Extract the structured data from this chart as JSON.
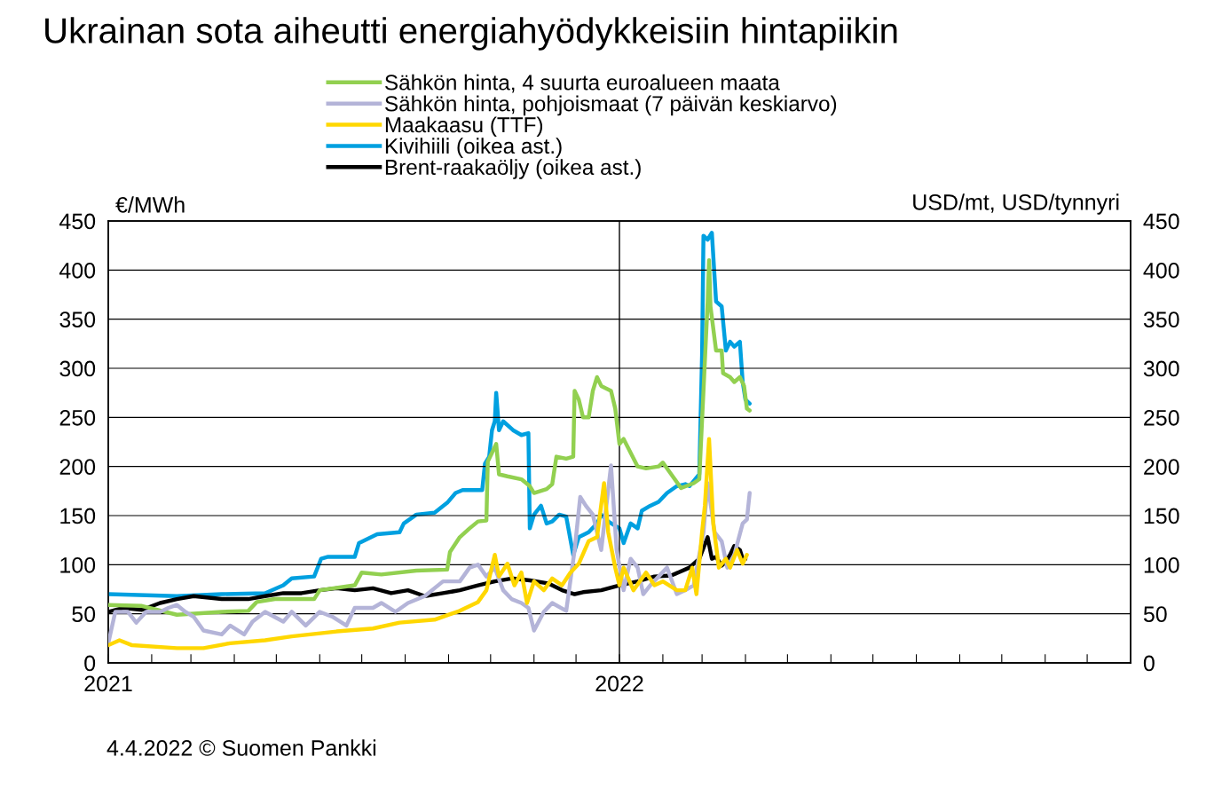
{
  "chart_data": {
    "type": "line",
    "title": "Ukrainan sota aiheutti energiahyödykkeisiin hintapiikin",
    "ylabel": "€/MWh",
    "y2label": "USD/mt, USD/tynnyri",
    "annotations": [
      "4.4.2022 © Suomen Pankki"
    ],
    "xlim": [
      "2021-01-01",
      "2023-01-01"
    ],
    "xticks": [
      {
        "value": "2021-01-01",
        "label": "2021"
      },
      {
        "value": "2021-02-01",
        "label": null
      },
      {
        "value": "2021-03-01",
        "label": null
      },
      {
        "value": "2021-04-01",
        "label": null
      },
      {
        "value": "2021-05-01",
        "label": null
      },
      {
        "value": "2021-06-01",
        "label": null
      },
      {
        "value": "2021-07-01",
        "label": null
      },
      {
        "value": "2021-08-01",
        "label": null
      },
      {
        "value": "2021-09-01",
        "label": null
      },
      {
        "value": "2021-10-01",
        "label": null
      },
      {
        "value": "2021-11-01",
        "label": null
      },
      {
        "value": "2021-12-01",
        "label": null
      },
      {
        "value": "2022-01-01",
        "label": "2022"
      },
      {
        "value": "2022-02-01",
        "label": null
      },
      {
        "value": "2022-03-01",
        "label": null
      },
      {
        "value": "2022-04-01",
        "label": null
      },
      {
        "value": "2022-05-01",
        "label": null
      },
      {
        "value": "2022-06-01",
        "label": null
      },
      {
        "value": "2022-07-01",
        "label": null
      },
      {
        "value": "2022-08-01",
        "label": null
      },
      {
        "value": "2022-09-01",
        "label": null
      },
      {
        "value": "2022-10-01",
        "label": null
      },
      {
        "value": "2022-11-01",
        "label": null
      },
      {
        "value": "2022-12-01",
        "label": null
      }
    ],
    "ylim": [
      0,
      450
    ],
    "yticks": [
      0,
      50,
      100,
      150,
      200,
      250,
      300,
      350,
      400,
      450
    ],
    "y2lim": [
      0,
      450
    ],
    "y2ticks": [
      0,
      50,
      100,
      150,
      200,
      250,
      300,
      350,
      400,
      450
    ],
    "grid": "y",
    "legend": "top",
    "marker": "none",
    "line_style": "solid",
    "ref_lines": [
      {
        "axis": "x",
        "value": "2022-01-01",
        "color": "#000000"
      }
    ],
    "series": [
      {
        "name": "Sähkön hinta, 4 suurta euroalueen maata",
        "color": "#92d050",
        "x": [
          "2021-01-01",
          "2021-01-25",
          "2021-02-19",
          "2021-03-23",
          "2021-04-11",
          "2021-04-17",
          "2021-04-30",
          "2021-05-28",
          "2021-06-01",
          "2021-06-26",
          "2021-07-01",
          "2021-07-15",
          "2021-08-09",
          "2021-08-31",
          "2021-09-02",
          "2021-09-09",
          "2021-09-16",
          "2021-09-22",
          "2021-09-28",
          "2021-09-29",
          "2021-10-02",
          "2021-10-05",
          "2021-10-07",
          "2021-10-13",
          "2021-10-23",
          "2021-10-29",
          "2021-11-01",
          "2021-11-10",
          "2021-11-14",
          "2021-11-17",
          "2021-11-24",
          "2021-11-29",
          "2021-11-30",
          "2021-12-03",
          "2021-12-06",
          "2021-12-10",
          "2021-12-13",
          "2021-12-16",
          "2021-12-19",
          "2021-12-26",
          "2021-12-29",
          "2022-01-01",
          "2022-01-04",
          "2022-01-09",
          "2022-01-14",
          "2022-01-20",
          "2022-01-29",
          "2022-02-01",
          "2022-02-07",
          "2022-02-14",
          "2022-02-23",
          "2022-02-27",
          "2022-03-02",
          "2022-03-05",
          "2022-03-06",
          "2022-03-07",
          "2022-03-11",
          "2022-03-15",
          "2022-03-16",
          "2022-03-21",
          "2022-03-24",
          "2022-03-28",
          "2022-03-31",
          "2022-04-02",
          "2022-04-04"
        ],
        "values": [
          59,
          58,
          49,
          52,
          53,
          62,
          65,
          65,
          74,
          79,
          92,
          90,
          94,
          95,
          113,
          128,
          137,
          144,
          145,
          205,
          214,
          223,
          192,
          190,
          187,
          180,
          173,
          177,
          182,
          210,
          208,
          210,
          277,
          268,
          250,
          250,
          277,
          291,
          282,
          277,
          259,
          223,
          228,
          214,
          200,
          198,
          200,
          204,
          192,
          178,
          183,
          187,
          277,
          368,
          410,
          363,
          318,
          318,
          295,
          291,
          286,
          291,
          282,
          259,
          257
        ]
      },
      {
        "name": "Sähkön hinta, pohjoismaat (7 päivän keskiarvo)",
        "color": "#b4b4d8",
        "x": [
          "2021-01-01",
          "2021-01-06",
          "2021-01-15",
          "2021-01-21",
          "2021-01-28",
          "2021-02-07",
          "2021-02-13",
          "2021-02-19",
          "2021-02-25",
          "2021-03-03",
          "2021-03-10",
          "2021-03-23",
          "2021-03-29",
          "2021-04-08",
          "2021-04-14",
          "2021-04-23",
          "2021-05-06",
          "2021-05-12",
          "2021-05-22",
          "2021-06-01",
          "2021-06-10",
          "2021-06-20",
          "2021-06-26",
          "2021-07-09",
          "2021-07-15",
          "2021-07-25",
          "2021-08-03",
          "2021-08-15",
          "2021-08-28",
          "2021-09-09",
          "2021-09-16",
          "2021-09-22",
          "2021-09-28",
          "2021-10-04",
          "2021-10-10",
          "2021-10-16",
          "2021-10-23",
          "2021-10-28",
          "2021-11-01",
          "2021-11-08",
          "2021-11-14",
          "2021-11-24",
          "2021-11-30",
          "2021-12-04",
          "2021-12-08",
          "2021-12-13",
          "2021-12-19",
          "2021-12-26",
          "2021-12-30",
          "2022-01-04",
          "2022-01-09",
          "2022-01-14",
          "2022-01-18",
          "2022-01-23",
          "2022-01-29",
          "2022-02-04",
          "2022-02-11",
          "2022-02-17",
          "2022-02-23",
          "2022-03-02",
          "2022-03-05",
          "2022-03-10",
          "2022-03-15",
          "2022-03-19",
          "2022-03-24",
          "2022-03-30",
          "2022-04-02",
          "2022-04-04"
        ],
        "values": [
          20,
          52,
          52,
          41,
          52,
          52,
          56,
          59,
          52,
          47,
          33,
          29,
          38,
          29,
          42,
          52,
          42,
          52,
          38,
          52,
          47,
          38,
          56,
          56,
          61,
          52,
          61,
          68,
          83,
          83,
          97,
          100,
          88,
          97,
          74,
          65,
          61,
          56,
          33,
          52,
          61,
          53,
          115,
          169,
          160,
          151,
          115,
          201,
          115,
          74,
          106,
          97,
          70,
          79,
          88,
          97,
          70,
          74,
          79,
          133,
          183,
          133,
          124,
          97,
          110,
          142,
          146,
          173
        ]
      },
      {
        "name": "Maakaasu (TTF)",
        "color": "#ffd700",
        "x": [
          "2021-01-01",
          "2021-01-09",
          "2021-01-18",
          "2021-02-19",
          "2021-03-10",
          "2021-03-29",
          "2021-04-23",
          "2021-05-12",
          "2021-06-13",
          "2021-07-09",
          "2021-07-28",
          "2021-08-22",
          "2021-09-09",
          "2021-09-22",
          "2021-09-28",
          "2021-10-04",
          "2021-10-07",
          "2021-10-13",
          "2021-10-18",
          "2021-10-23",
          "2021-10-27",
          "2021-11-01",
          "2021-11-08",
          "2021-11-14",
          "2021-11-21",
          "2021-11-27",
          "2021-12-03",
          "2021-12-10",
          "2021-12-16",
          "2021-12-21",
          "2021-12-24",
          "2021-12-29",
          "2022-01-01",
          "2022-01-04",
          "2022-01-11",
          "2022-01-20",
          "2022-01-26",
          "2022-02-01",
          "2022-02-11",
          "2022-02-17",
          "2022-02-22",
          "2022-02-25",
          "2022-03-01",
          "2022-03-03",
          "2022-03-06",
          "2022-03-09",
          "2022-03-13",
          "2022-03-18",
          "2022-03-21",
          "2022-03-26",
          "2022-03-30",
          "2022-04-02"
        ],
        "values": [
          18,
          23,
          18,
          15,
          15,
          20,
          23,
          27,
          32,
          35,
          41,
          44,
          53,
          62,
          74,
          110,
          88,
          101,
          79,
          92,
          61,
          83,
          74,
          86,
          79,
          92,
          101,
          124,
          128,
          183,
          133,
          97,
          79,
          97,
          74,
          92,
          79,
          83,
          74,
          74,
          97,
          70,
          133,
          160,
          228,
          142,
          97,
          106,
          97,
          115,
          101,
          110
        ]
      },
      {
        "name": "Kivihiili (oikea ast.)",
        "color": "#00a0e0",
        "axis": "y2",
        "x": [
          "2021-01-01",
          "2021-02-19",
          "2021-03-23",
          "2021-04-23",
          "2021-05-06",
          "2021-05-12",
          "2021-05-28",
          "2021-06-02",
          "2021-06-07",
          "2021-06-26",
          "2021-06-29",
          "2021-07-12",
          "2021-07-28",
          "2021-07-31",
          "2021-08-09",
          "2021-08-22",
          "2021-08-31",
          "2021-09-06",
          "2021-09-11",
          "2021-09-25",
          "2021-09-27",
          "2021-09-30",
          "2021-10-02",
          "2021-10-04",
          "2021-10-05",
          "2021-10-07",
          "2021-10-10",
          "2021-10-17",
          "2021-10-23",
          "2021-10-28",
          "2021-10-29",
          "2021-11-01",
          "2021-11-06",
          "2021-11-10",
          "2021-11-14",
          "2021-11-19",
          "2021-11-24",
          "2021-11-29",
          "2021-12-03",
          "2021-12-10",
          "2021-12-16",
          "2021-12-19",
          "2021-12-24",
          "2022-01-01",
          "2022-01-04",
          "2022-01-09",
          "2022-01-14",
          "2022-01-17",
          "2022-01-23",
          "2022-01-29",
          "2022-02-04",
          "2022-02-11",
          "2022-02-17",
          "2022-02-20",
          "2022-02-27",
          "2022-03-01",
          "2022-03-02",
          "2022-03-05",
          "2022-03-08",
          "2022-03-11",
          "2022-03-15",
          "2022-03-18",
          "2022-03-21",
          "2022-03-24",
          "2022-03-28",
          "2022-03-30",
          "2022-04-01",
          "2022-04-04"
        ],
        "values": [
          70,
          68,
          70,
          71,
          79,
          86,
          88,
          106,
          108,
          108,
          122,
          131,
          133,
          142,
          151,
          153,
          163,
          173,
          176,
          176,
          203,
          210,
          237,
          246,
          275,
          237,
          246,
          237,
          232,
          234,
          137,
          151,
          160,
          142,
          144,
          151,
          149,
          110,
          128,
          133,
          142,
          151,
          144,
          137,
          122,
          142,
          137,
          155,
          160,
          164,
          173,
          180,
          182,
          180,
          192,
          313,
          435,
          431,
          438,
          368,
          363,
          318,
          327,
          322,
          327,
          286,
          268,
          264
        ]
      },
      {
        "name": "Brent-raakaöljy (oikea ast.)",
        "color": "#000000",
        "axis": "y2",
        "x": [
          "2021-01-01",
          "2021-01-12",
          "2021-01-25",
          "2021-02-07",
          "2021-02-19",
          "2021-03-03",
          "2021-03-23",
          "2021-04-11",
          "2021-04-23",
          "2021-05-06",
          "2021-05-19",
          "2021-06-01",
          "2021-06-13",
          "2021-06-26",
          "2021-07-09",
          "2021-07-22",
          "2021-08-03",
          "2021-08-15",
          "2021-08-28",
          "2021-09-09",
          "2021-09-22",
          "2021-10-04",
          "2021-10-16",
          "2021-10-29",
          "2021-11-11",
          "2021-11-21",
          "2021-11-30",
          "2021-12-06",
          "2021-12-19",
          "2022-01-01",
          "2022-01-14",
          "2022-01-26",
          "2022-02-07",
          "2022-02-20",
          "2022-02-27",
          "2022-03-02",
          "2022-03-05",
          "2022-03-08",
          "2022-03-11",
          "2022-03-15",
          "2022-03-18",
          "2022-03-21",
          "2022-03-24",
          "2022-03-28",
          "2022-03-30",
          "2022-04-01"
        ],
        "values": [
          52,
          56,
          54,
          61,
          65,
          68,
          65,
          65,
          68,
          71,
          71,
          74,
          76,
          74,
          76,
          71,
          74,
          68,
          71,
          74,
          79,
          83,
          86,
          84,
          81,
          74,
          70,
          72,
          74,
          79,
          83,
          88,
          89,
          97,
          106,
          117,
          128,
          106,
          108,
          99,
          103,
          110,
          119,
          115,
          106,
          106
        ]
      }
    ]
  }
}
